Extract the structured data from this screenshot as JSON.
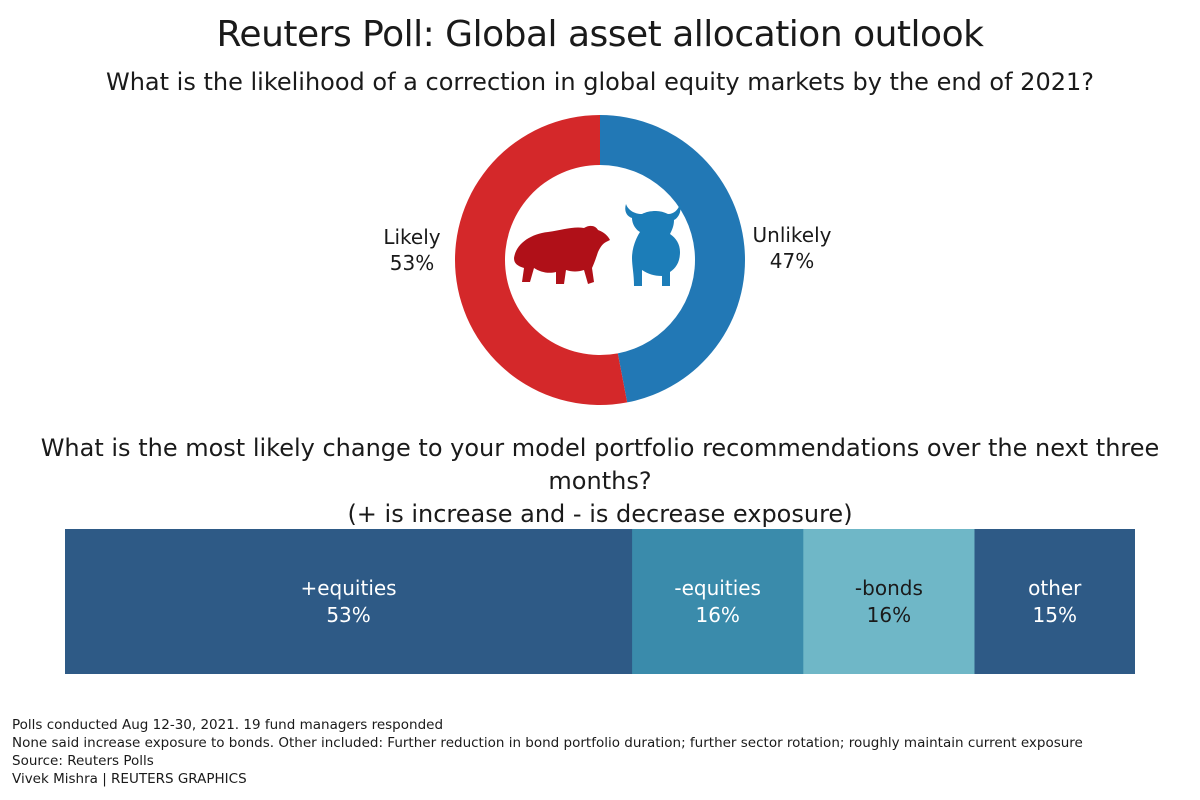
{
  "title": "Reuters Poll: Global asset allocation outlook",
  "question1": "What is the likelihood of a correction in global equity markets by the end of 2021?",
  "question2_line1": "What is the most likely change to your model portfolio recommendations over the next three months?",
  "question2_line2": "(+ is increase and - is decrease exposure)",
  "icons": {
    "bear": "bear-icon",
    "bull": "bull-icon"
  },
  "chart_data": [
    {
      "type": "pie",
      "donut": true,
      "slices": [
        {
          "label": "Likely",
          "value": 53,
          "display": "53%",
          "color": "#d4282a"
        },
        {
          "label": "Unlikely",
          "value": 47,
          "display": "47%",
          "color": "#2278b5"
        }
      ],
      "icon_colors": {
        "bear": "#b01018",
        "bull": "#1c7db8"
      }
    },
    {
      "type": "bar",
      "stacked": true,
      "orientation": "horizontal",
      "segments": [
        {
          "label": "+equities",
          "value": 53,
          "display": "53%",
          "color": "#2e5a86"
        },
        {
          "label": "-equities",
          "value": 16,
          "display": "16%",
          "color": "#3a8bab"
        },
        {
          "label": "-bonds",
          "value": 16,
          "display": "16%",
          "color": "#6fb7c7"
        },
        {
          "label": "other",
          "value": 15,
          "display": "15%",
          "color": "#2e5a86"
        }
      ]
    }
  ],
  "footer": {
    "line1": "Polls conducted Aug 12-30, 2021. 19 fund managers responded",
    "line2": "None said increase exposure to bonds. Other included: Further reduction in bond portfolio duration; further sector rotation; roughly maintain current exposure",
    "line3": "Source: Reuters Polls",
    "line4": "Vivek Mishra | REUTERS GRAPHICS"
  }
}
